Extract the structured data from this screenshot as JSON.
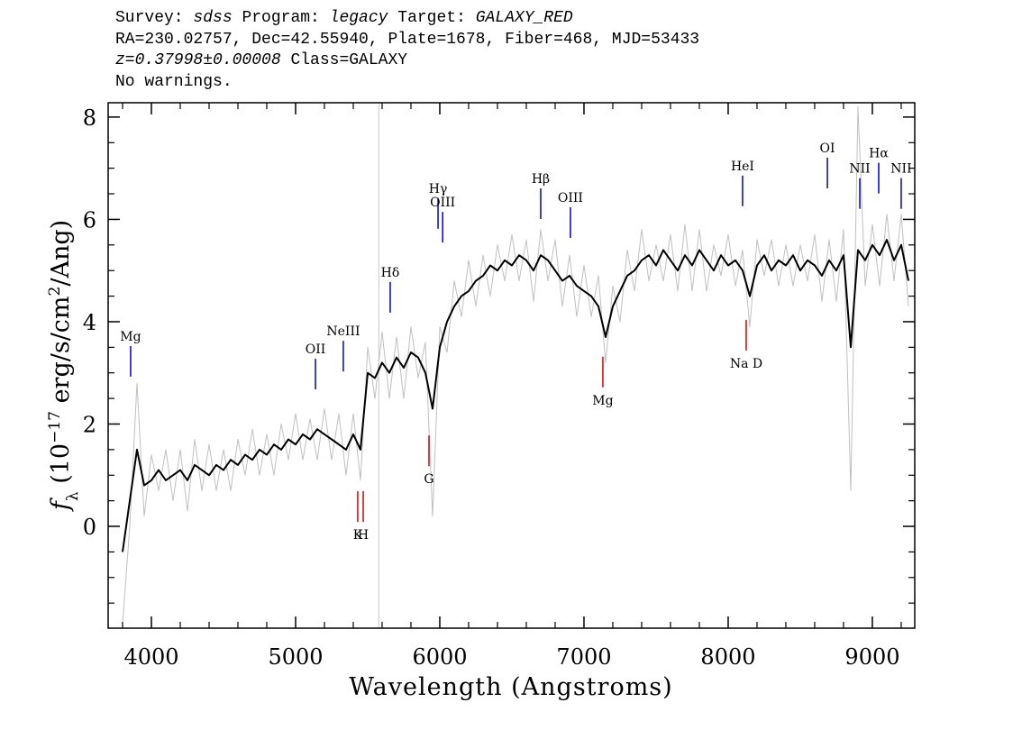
{
  "chart_data": {
    "type": "line",
    "header_lines": [
      [
        {
          "text": "Survey:"
        },
        {
          "text": "sdss",
          "italic": true
        },
        {
          "text": "Program:"
        },
        {
          "text": "legacy",
          "italic": true
        },
        {
          "text": "Target:"
        },
        {
          "text": "GALAXY_RED",
          "italic": true
        }
      ],
      [
        {
          "text": "RA=230.02757, Dec=42.55940, Plate=1678, Fiber=468, MJD=53433"
        }
      ],
      [
        {
          "text": "z=0.37998±0.00008",
          "italic": true
        },
        {
          "text": "Class=GALAXY"
        }
      ],
      [
        {
          "text": "No warnings."
        }
      ]
    ],
    "xlabel": "Wavelength (Angstroms)",
    "ylabel": [
      {
        "text": "f",
        "italic": true
      },
      {
        "text": "λ",
        "shift": "sub"
      },
      {
        "text": " (10"
      },
      {
        "text": "−17",
        "shift": "super"
      },
      {
        "text": " erg/s/cm"
      },
      {
        "text": "2",
        "shift": "super"
      },
      {
        "text": "/Ang)"
      }
    ],
    "xlim": [
      3700,
      9294
    ],
    "ylim": [
      -1.99,
      8.28
    ],
    "xticks": [
      4000,
      5000,
      6000,
      7000,
      8000,
      9000
    ],
    "yticks": [
      0,
      2,
      4,
      6,
      8
    ],
    "xminorticks": [
      3800,
      4200,
      4400,
      4600,
      4800,
      5200,
      5400,
      5600,
      5800,
      6200,
      6400,
      6600,
      6800,
      7200,
      7400,
      7600,
      7800,
      8200,
      8400,
      8600,
      8800,
      9200
    ],
    "yminorticks": [
      -1.5,
      -1,
      -0.5,
      0.5,
      1,
      1.5,
      2.5,
      3,
      3.5,
      4.5,
      5,
      5.5,
      6.5,
      7,
      7.5
    ],
    "reference_lines": [
      {
        "x": 5577,
        "color": "#c8c8c8"
      }
    ],
    "x": [
      3800,
      3850,
      3900,
      3950,
      4000,
      4050,
      4100,
      4150,
      4200,
      4250,
      4300,
      4350,
      4400,
      4450,
      4500,
      4550,
      4600,
      4650,
      4700,
      4750,
      4800,
      4850,
      4900,
      4950,
      5000,
      5050,
      5100,
      5150,
      5200,
      5250,
      5300,
      5350,
      5400,
      5450,
      5500,
      5550,
      5600,
      5650,
      5700,
      5750,
      5800,
      5850,
      5900,
      5950,
      6000,
      6050,
      6100,
      6150,
      6200,
      6250,
      6300,
      6350,
      6400,
      6450,
      6500,
      6550,
      6600,
      6650,
      6700,
      6750,
      6800,
      6850,
      6900,
      6950,
      7000,
      7050,
      7100,
      7150,
      7200,
      7250,
      7300,
      7350,
      7400,
      7450,
      7500,
      7550,
      7600,
      7650,
      7700,
      7750,
      7800,
      7850,
      7900,
      7950,
      8000,
      8050,
      8100,
      8150,
      8200,
      8250,
      8300,
      8350,
      8400,
      8450,
      8500,
      8550,
      8600,
      8650,
      8700,
      8750,
      8800,
      8850,
      8900,
      8950,
      9000,
      9050,
      9100,
      9150,
      9200,
      9250
    ],
    "series": [
      {
        "color": "#c0c0c0",
        "width": 1,
        "values": [
          -1.9,
          0.0,
          2.8,
          0.2,
          1.4,
          0.7,
          1.5,
          0.5,
          1.5,
          0.3,
          1.7,
          0.7,
          1.6,
          0.7,
          1.5,
          0.7,
          1.7,
          1.0,
          1.9,
          1.0,
          1.8,
          1.0,
          2.0,
          1.3,
          2.2,
          1.3,
          2.1,
          1.3,
          2.3,
          1.3,
          2.2,
          1.0,
          2.2,
          0.9,
          3.5,
          2.5,
          3.8,
          2.5,
          3.7,
          2.5,
          3.9,
          2.9,
          3.6,
          0.2,
          3.9,
          3.4,
          4.8,
          4.1,
          5.2,
          4.3,
          5.3,
          4.5,
          5.5,
          4.8,
          5.7,
          4.8,
          5.6,
          4.4,
          5.8,
          4.8,
          5.6,
          4.3,
          5.3,
          4.1,
          5.1,
          4.1,
          4.9,
          3.2,
          4.7,
          4.0,
          5.4,
          4.6,
          5.8,
          4.8,
          5.5,
          4.8,
          5.7,
          4.6,
          5.9,
          4.6,
          5.8,
          4.6,
          5.5,
          4.9,
          5.7,
          4.7,
          5.4,
          3.9,
          5.6,
          4.9,
          5.6,
          4.7,
          5.5,
          4.7,
          5.5,
          4.8,
          5.7,
          4.4,
          5.6,
          4.4,
          5.8,
          0.7,
          8.2,
          4.7,
          5.9,
          4.7,
          6.1,
          4.8,
          6.1,
          4.3
        ]
      },
      {
        "color": "#000000",
        "width": 2,
        "values": [
          -0.5,
          0.5,
          1.5,
          0.8,
          0.9,
          1.1,
          0.9,
          1.0,
          1.1,
          0.9,
          1.2,
          1.1,
          1.0,
          1.2,
          1.1,
          1.3,
          1.2,
          1.4,
          1.3,
          1.5,
          1.4,
          1.6,
          1.5,
          1.7,
          1.6,
          1.8,
          1.7,
          1.9,
          1.8,
          1.7,
          1.6,
          1.5,
          1.8,
          1.5,
          3.0,
          2.9,
          3.2,
          3.0,
          3.3,
          3.1,
          3.4,
          3.3,
          3.0,
          2.3,
          3.5,
          4.0,
          4.3,
          4.5,
          4.6,
          4.8,
          4.9,
          5.1,
          5.0,
          5.2,
          5.1,
          5.3,
          5.2,
          5.0,
          5.3,
          5.2,
          5.0,
          4.8,
          4.9,
          4.7,
          4.6,
          4.5,
          4.3,
          3.7,
          4.3,
          4.6,
          4.9,
          5.0,
          5.2,
          5.3,
          5.1,
          5.4,
          5.2,
          5.0,
          5.3,
          5.1,
          5.4,
          5.2,
          5.0,
          5.3,
          5.1,
          5.2,
          5.0,
          4.5,
          5.1,
          5.3,
          5.0,
          5.2,
          5.1,
          5.3,
          5.0,
          5.2,
          5.1,
          4.9,
          5.2,
          5.0,
          5.3,
          3.5,
          5.4,
          5.2,
          5.5,
          5.3,
          5.6,
          5.2,
          5.5,
          4.8
        ]
      }
    ],
    "annotations": [
      {
        "label": "Mg",
        "x": 3856,
        "y": 3.72,
        "position": "above",
        "color": "#0000cc"
      },
      {
        "label": "OII",
        "x": 5138,
        "y": 3.47,
        "position": "above",
        "color": "#0000cc"
      },
      {
        "label": "NeIII",
        "x": 5331,
        "y": 3.82,
        "position": "above",
        "color": "#0000cc"
      },
      {
        "label": "Hδ",
        "x": 5656,
        "y": 4.97,
        "position": "above",
        "color": "#0000cc"
      },
      {
        "label": "Hγ",
        "x": 5988,
        "y": 6.61,
        "position": "above",
        "color": "#0000cc"
      },
      {
        "label": "OIII",
        "x": 6020,
        "y": 6.34,
        "position": "above",
        "color": "#0000cc"
      },
      {
        "label": "Hβ",
        "x": 6700,
        "y": 6.8,
        "position": "above",
        "color": "#0000cc"
      },
      {
        "label": "OIII",
        "x": 6906,
        "y": 6.43,
        "position": "above",
        "color": "#0000cc"
      },
      {
        "label": "HeI",
        "x": 8100,
        "y": 7.05,
        "position": "above",
        "color": "#0000cc"
      },
      {
        "label": "OI",
        "x": 8688,
        "y": 7.4,
        "position": "above",
        "color": "#0000cc"
      },
      {
        "label": "NII",
        "x": 8913,
        "y": 7.0,
        "position": "above",
        "color": "#0000cc"
      },
      {
        "label": "Hα",
        "x": 9044,
        "y": 7.3,
        "position": "above",
        "color": "#0000cc"
      },
      {
        "label": "NII",
        "x": 9200,
        "y": 7.0,
        "position": "above",
        "color": "#0000cc"
      },
      {
        "label": "K",
        "x": 5431,
        "y": -0.16,
        "position": "below",
        "color": "#dd0000"
      },
      {
        "label": "H",
        "x": 5469,
        "y": -0.16,
        "position": "below",
        "color": "#dd0000"
      },
      {
        "label": "G",
        "x": 5925,
        "y": 0.93,
        "position": "below",
        "color": "#dd0000"
      },
      {
        "label": "Mg",
        "x": 7131,
        "y": 2.47,
        "position": "below",
        "color": "#dd0000"
      },
      {
        "label": "Na D",
        "x": 8125,
        "y": 3.19,
        "position": "below",
        "color": "#dd0000"
      }
    ]
  }
}
